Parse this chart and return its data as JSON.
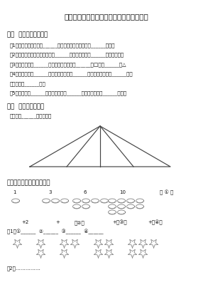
{
  "title": "一年级数学下册几何图形分类专项强化练习",
  "s1_title": "一、  想一想，填一填。",
  "s1_items": [
    "（1）三角形比长方形少______条边，六边形比三角形多______条边。",
    "（2）要围一个大正方形最少需要______个小正方形，或______个小三角形。",
    "（3）七巧板是由______种图形组成，其中有______个□，有______个△",
    "（4）黑板的面是______形，地板砖的面是______形，红领巾的面是______形，",
    "硬币的面是______形。",
    "（5）正方形有______条边，长方形有______条边，三角形有______条边。"
  ],
  "s2_title": "二、  想一想，数一数",
  "s2_sub": "下图中有______个三角形。",
  "s3_title": "三、请你摆一摆，算一算。",
  "bg_color": "#ffffff",
  "title_fs": 7.5,
  "body_fs": 5.0,
  "sec_fs": 6.2,
  "small_fs": 4.8
}
